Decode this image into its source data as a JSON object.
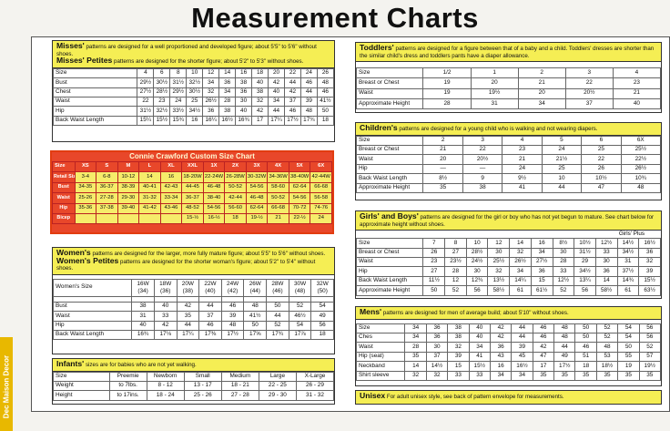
{
  "title": "Measurement Charts",
  "side_label": "Dec Maison Decor",
  "misses": {
    "name": "Misses'",
    "desc": "patterns are designed for a well proportioned and developed figure; about 5'5\" to 5'6\" without shoes.",
    "petite_name": "Misses' Petites",
    "petite_desc": "patterns are designed for the shorter figure; about 5'2\" to 5'3\" without shoes.",
    "header": [
      "Size",
      "4",
      "6",
      "8",
      "10",
      "12",
      "14",
      "16",
      "18",
      "20",
      "22",
      "24",
      "26"
    ],
    "rows": [
      [
        "Bust",
        "29½",
        "30½",
        "31½",
        "32½",
        "34",
        "36",
        "38",
        "40",
        "42",
        "44",
        "46",
        "48"
      ],
      [
        "Chest",
        "27½",
        "28½",
        "29½",
        "30½",
        "32",
        "34",
        "36",
        "38",
        "40",
        "42",
        "44",
        "46"
      ],
      [
        "Waist",
        "22",
        "23",
        "24",
        "25",
        "26½",
        "28",
        "30",
        "32",
        "34",
        "37",
        "39",
        "41½"
      ],
      [
        "Hip",
        "31½",
        "32½",
        "33½",
        "34½",
        "36",
        "38",
        "40",
        "42",
        "44",
        "46",
        "48",
        "50"
      ],
      [
        "Back Waist Length",
        "15¼",
        "15½",
        "15¾",
        "16",
        "16¼",
        "16½",
        "16¾",
        "17",
        "17¼",
        "17½",
        "17¾",
        "18"
      ]
    ]
  },
  "connie": {
    "title": "Connie Crawford Custom Size Chart",
    "header": [
      "Size",
      "XS",
      "S",
      "M",
      "L",
      "XL",
      "XXL",
      "1X",
      "2X",
      "3X",
      "4X",
      "5X",
      "6X"
    ],
    "rows": [
      [
        "Retail Size",
        "3-4",
        "6-8",
        "10-12",
        "14",
        "16",
        "18-20W",
        "22-24W",
        "26-28W",
        "30-32W",
        "34-36W",
        "38-40W",
        "42-44W"
      ],
      [
        "Bust",
        "34-35",
        "36-37",
        "38-39",
        "40-41",
        "42-43",
        "44-45",
        "46-48",
        "50-52",
        "54-56",
        "58-60",
        "62-64",
        "66-68"
      ],
      [
        "Waist",
        "25-26",
        "27-28",
        "29-30",
        "31-32",
        "33-34",
        "36-37",
        "38-40",
        "42-44",
        "46-48",
        "50-52",
        "54-56",
        "56-58"
      ],
      [
        "Hip",
        "35-36",
        "37-38",
        "39-40",
        "41-42",
        "43-46",
        "48-52",
        "54-56",
        "56-60",
        "62-64",
        "66-68",
        "70-72",
        "74-76"
      ],
      [
        "Bicep",
        "",
        "",
        "",
        "",
        "",
        "15-½",
        "16-½",
        "18",
        "19-½",
        "21",
        "22-½",
        "24"
      ]
    ]
  },
  "womens": {
    "name": "Women's",
    "desc": "patterns are designed for the larger, more fully mature figure; about 5'5\" to 5'6\" without shoes.",
    "petite_name": "Women's Petites",
    "petite_desc": "patterns are designed for the shorter woman's figure; about 5'2\" to 5'4\" without shoes.",
    "size_label": "Women's Size",
    "sizes": [
      "16W",
      "18W",
      "20W",
      "22W",
      "24W",
      "26W",
      "28W",
      "30W",
      "32W"
    ],
    "sizes2": [
      "(34)",
      "(36)",
      "(38)",
      "(40)",
      "(42)",
      "(44)",
      "(46)",
      "(48)",
      "(50)"
    ],
    "rows": [
      [
        "Bust",
        "38",
        "40",
        "42",
        "44",
        "46",
        "48",
        "50",
        "52",
        "54"
      ],
      [
        "Waist",
        "31",
        "33",
        "35",
        "37",
        "39",
        "41½",
        "44",
        "46½",
        "49"
      ],
      [
        "Hip",
        "40",
        "42",
        "44",
        "46",
        "48",
        "50",
        "52",
        "54",
        "56"
      ],
      [
        "Back Waist Length",
        "16¾",
        "17⅛",
        "17¼",
        "17⅜",
        "17½",
        "17⅝",
        "17¾",
        "17⅞",
        "18"
      ]
    ]
  },
  "infants": {
    "name": "Infants'",
    "desc": "sizes are for babies who are not yet walking.",
    "header": [
      "Size",
      "Preemie",
      "Newborn",
      "Small",
      "Medium",
      "Large",
      "X-Large"
    ],
    "rows": [
      [
        "Weight",
        "to 7lbs.",
        "8 - 12",
        "13 - 17",
        "18 - 21",
        "22 - 25",
        "26 - 29"
      ],
      [
        "Height",
        "to 17ins.",
        "18 - 24",
        "25 - 26",
        "27 - 28",
        "29 - 30",
        "31 - 32"
      ]
    ]
  },
  "toddlers": {
    "name": "Toddlers'",
    "desc": "patterns are designed for a figure between that of a baby and a child. Toddlers' dresses are shorter than the similar child's dress and toddlers pants have a diaper allowance.",
    "header": [
      "Size",
      "1/2",
      "1",
      "2",
      "3",
      "4"
    ],
    "rows": [
      [
        "Breast or Chest",
        "19",
        "20",
        "21",
        "22",
        "23"
      ],
      [
        "Waist",
        "19",
        "19½",
        "20",
        "20½",
        "21"
      ],
      [
        "Approximate Height",
        "28",
        "31",
        "34",
        "37",
        "40"
      ]
    ]
  },
  "children": {
    "name": "Children's",
    "desc": "patterns are designed for a young child who is walking and not wearing diapers.",
    "header": [
      "Size",
      "2",
      "3",
      "4",
      "5",
      "6",
      "6X"
    ],
    "rows": [
      [
        "Breast or Chest",
        "21",
        "22",
        "23",
        "24",
        "25",
        "25½"
      ],
      [
        "Waist",
        "20",
        "20½",
        "21",
        "21½",
        "22",
        "22½"
      ],
      [
        "Hip",
        "—",
        "—",
        "24",
        "25",
        "26",
        "26½"
      ],
      [
        "Back Waist Length",
        "8½",
        "9",
        "9½",
        "10",
        "10½",
        "10¾"
      ],
      [
        "Approximate Height",
        "35",
        "38",
        "41",
        "44",
        "47",
        "48"
      ]
    ]
  },
  "girls_boys": {
    "name": "Girls' and Boys'",
    "desc": "patterns are designed for the girl or boy who has not yet begun to mature. See chart below for approximate height without shoes.",
    "plus_label": "Girls' Plus",
    "header": [
      "Size",
      "7",
      "8",
      "10",
      "12",
      "14",
      "16",
      "8½",
      "10½",
      "12½",
      "14½",
      "16½"
    ],
    "rows": [
      [
        "Breast or Chest",
        "26",
        "27",
        "28½",
        "30",
        "32",
        "34",
        "30",
        "31½",
        "33",
        "34½",
        "36"
      ],
      [
        "Waist",
        "23",
        "23½",
        "24½",
        "25½",
        "26½",
        "27½",
        "28",
        "29",
        "30",
        "31",
        "32"
      ],
      [
        "Hip",
        "27",
        "28",
        "30",
        "32",
        "34",
        "36",
        "33",
        "34½",
        "36",
        "37½",
        "39"
      ],
      [
        "Back Waist Length",
        "11½",
        "12",
        "12¾",
        "13½",
        "14¼",
        "15",
        "12½",
        "13¼",
        "14",
        "14¾",
        "15½"
      ],
      [
        "Approximate Height",
        "50",
        "52",
        "56",
        "58½",
        "61",
        "61½",
        "52",
        "56",
        "58½",
        "61",
        "63½"
      ]
    ]
  },
  "mens": {
    "name": "Mens'",
    "desc": "patterns are designed for men of average build; about 5'10\" without shoes.",
    "header": [
      "Size",
      "34",
      "36",
      "38",
      "40",
      "42",
      "44",
      "46",
      "48",
      "50",
      "52",
      "54",
      "56"
    ],
    "rows": [
      [
        "Ches",
        "34",
        "36",
        "38",
        "40",
        "42",
        "44",
        "46",
        "48",
        "50",
        "52",
        "54",
        "56"
      ],
      [
        "Waist",
        "28",
        "30",
        "32",
        "34",
        "36",
        "39",
        "42",
        "44",
        "46",
        "48",
        "50",
        "52"
      ],
      [
        "Hip (seat)",
        "35",
        "37",
        "39",
        "41",
        "43",
        "45",
        "47",
        "49",
        "51",
        "53",
        "55",
        "57"
      ],
      [
        "Neckband",
        "14",
        "14½",
        "15",
        "15½",
        "16",
        "16½",
        "17",
        "17½",
        "18",
        "18½",
        "19",
        "19½"
      ],
      [
        "Shirt sleeve",
        "32",
        "32",
        "33",
        "33",
        "34",
        "34",
        "35",
        "35",
        "35",
        "35",
        "35",
        "35"
      ]
    ]
  },
  "unisex": {
    "name": "Unisex",
    "desc": "For adult unisex style, see back of pattern envelope for measurements."
  }
}
